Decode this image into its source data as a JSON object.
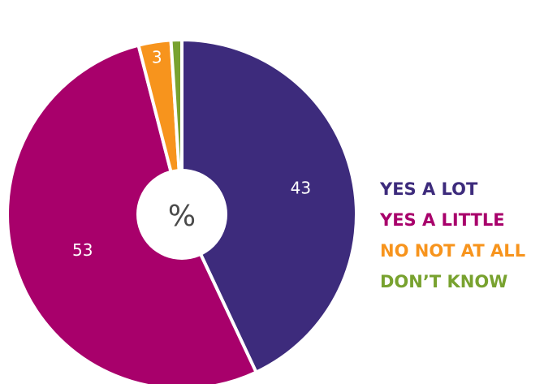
{
  "chart_data": {
    "type": "pie",
    "center_label": "%",
    "legend_placement": "right",
    "slices": [
      {
        "label": "YES A LOT",
        "value": 43,
        "value_label": "43",
        "color": "#3d2b7c"
      },
      {
        "label": "YES A LITTLE",
        "value": 53,
        "value_label": "53",
        "color": "#a8006b"
      },
      {
        "label": "NO NOT AT ALL",
        "value": 3,
        "value_label": "3",
        "color": "#f7941d"
      },
      {
        "label": "DON’T KNOW",
        "value": 1,
        "value_label": "1",
        "color": "#78a22f"
      }
    ]
  }
}
